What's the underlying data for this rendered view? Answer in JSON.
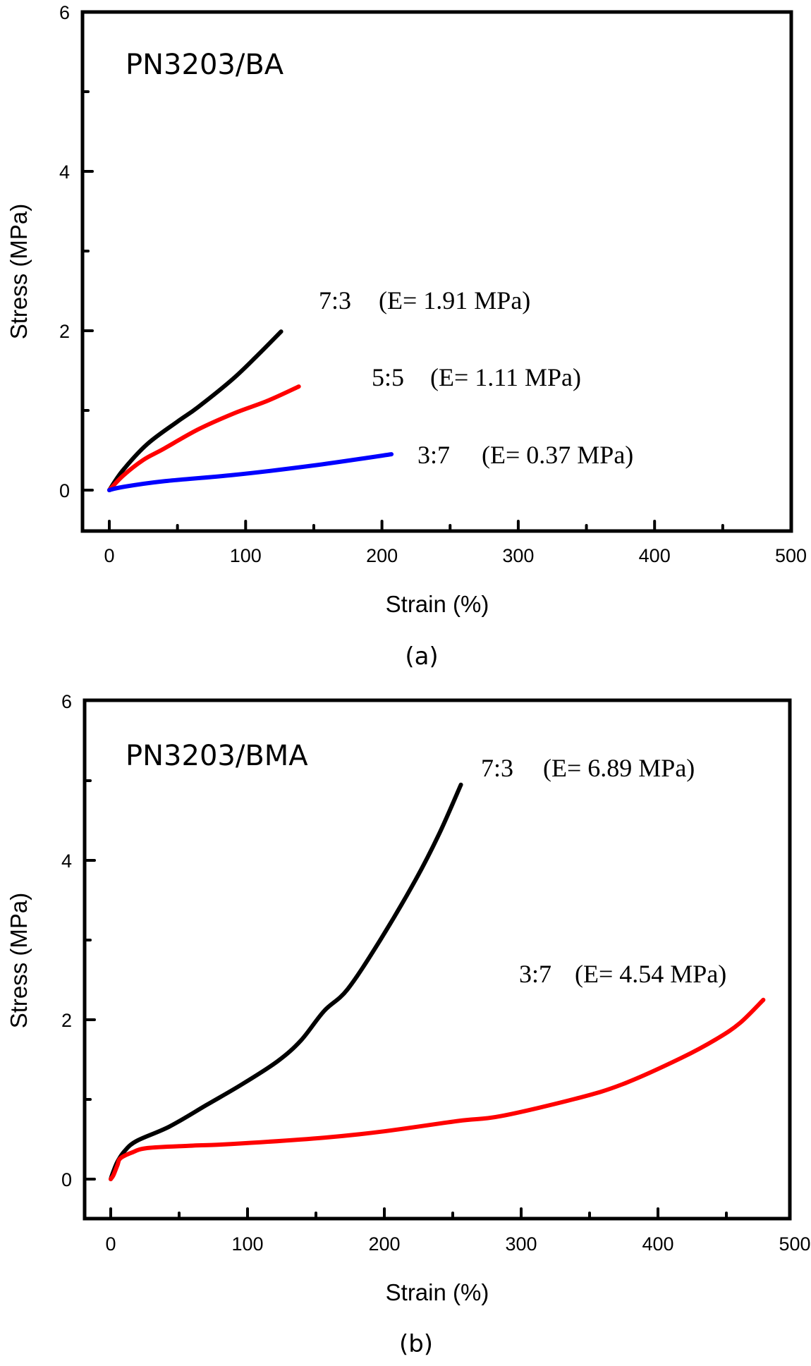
{
  "chart_data": [
    {
      "type": "line",
      "panel_caption": "(a)",
      "title": "PN3203/BA",
      "xlabel": "Strain (%)",
      "ylabel": "Stress (MPa)",
      "xlim": [
        -20,
        500
      ],
      "ylim": [
        -0.5,
        6
      ],
      "xticks": [
        0,
        100,
        200,
        300,
        400,
        500
      ],
      "xticks_minor": [
        50,
        150,
        250,
        350,
        450
      ],
      "yticks": [
        0,
        2,
        4,
        6
      ],
      "yticks_minor": [
        1,
        3,
        5
      ],
      "grid": false,
      "legend": "none (inline annotations)",
      "series": [
        {
          "name": "7:3",
          "color": "#000000",
          "annotation": "(E= 1.91 MPa)",
          "x": [
            0,
            10,
            28,
            50,
            65,
            91,
            111,
            126
          ],
          "y": [
            0,
            0.25,
            0.58,
            0.86,
            1.04,
            1.4,
            1.73,
            1.99
          ]
        },
        {
          "name": "5:5",
          "color": "#ff0000",
          "annotation": "(E= 1.11 MPa)",
          "x": [
            0,
            10,
            25,
            39,
            65,
            91,
            116,
            139
          ],
          "y": [
            0,
            0.18,
            0.38,
            0.51,
            0.76,
            0.96,
            1.12,
            1.3
          ]
        },
        {
          "name": "3:7",
          "color": "#0000ff",
          "annotation": "(E= 0.37 MPa)",
          "x": [
            0,
            10,
            39,
            91,
            150,
            207
          ],
          "y": [
            0,
            0.04,
            0.11,
            0.19,
            0.31,
            0.45
          ]
        }
      ]
    },
    {
      "type": "line",
      "panel_caption": "(b)",
      "title": "PN3203/BMA",
      "xlabel": "Strain (%)",
      "ylabel": "Stress (MPa)",
      "xlim": [
        -20,
        500
      ],
      "ylim": [
        -0.5,
        6
      ],
      "xticks": [
        0,
        100,
        200,
        300,
        400,
        500
      ],
      "xticks_minor": [
        50,
        150,
        250,
        350,
        450
      ],
      "yticks": [
        0,
        2,
        4,
        6
      ],
      "yticks_minor": [
        1,
        3,
        5
      ],
      "grid": false,
      "legend": "none (inline annotations)",
      "series": [
        {
          "name": "7:3",
          "color": "#000000",
          "annotation": "(E= 6.89 MPa)",
          "x": [
            0,
            2,
            5,
            10,
            19,
            43,
            70,
            96,
            122,
            139,
            156,
            173,
            197,
            223,
            240,
            256
          ],
          "y": [
            0,
            0.1,
            0.22,
            0.35,
            0.48,
            0.66,
            0.93,
            1.19,
            1.48,
            1.74,
            2.11,
            2.38,
            3.0,
            3.76,
            4.33,
            4.95
          ]
        },
        {
          "name": "3:7",
          "color": "#ff0000",
          "annotation": "(E= 4.54 MPa)",
          "x": [
            0,
            2,
            5,
            7,
            15,
            27,
            60,
            88,
            156,
            200,
            254,
            285,
            340,
            374,
            417,
            443,
            460,
            477
          ],
          "y": [
            0,
            0.05,
            0.18,
            0.26,
            0.33,
            0.39,
            0.42,
            0.44,
            0.52,
            0.6,
            0.73,
            0.79,
            1.01,
            1.19,
            1.52,
            1.76,
            1.96,
            2.25
          ]
        }
      ]
    }
  ]
}
